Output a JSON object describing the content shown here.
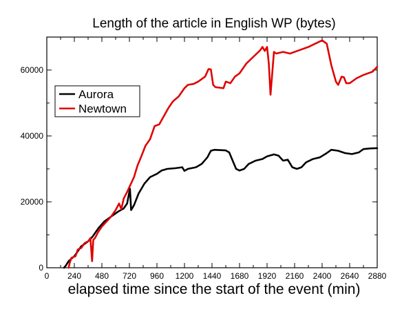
{
  "chart_data": {
    "type": "line",
    "title": "Length of the article in English WP (bytes)",
    "xlabel": "elapsed time since the start of the event (min)",
    "ylabel": "",
    "xlim": [
      0,
      2880
    ],
    "ylim": [
      0,
      70000
    ],
    "x_ticks": [
      0,
      240,
      480,
      720,
      960,
      1200,
      1440,
      1680,
      1920,
      2160,
      2400,
      2640,
      2880
    ],
    "x_tick_labels": [
      "0",
      "240",
      "480",
      "720",
      "960",
      "1200",
      "1440",
      "1680",
      "1920",
      "2160",
      "2400",
      "2640",
      "2880"
    ],
    "y_ticks": [
      0,
      20000,
      40000,
      60000
    ],
    "y_tick_labels": [
      "0",
      "20000",
      "40000",
      "60000"
    ],
    "grid": false,
    "legend_position": "upper-left",
    "series": [
      {
        "name": "Aurora",
        "color": "#000000",
        "points": [
          [
            150,
            0
          ],
          [
            165,
            600
          ],
          [
            190,
            2000
          ],
          [
            240,
            3500
          ],
          [
            300,
            6500
          ],
          [
            360,
            8000
          ],
          [
            400,
            9500
          ],
          [
            450,
            12000
          ],
          [
            500,
            14000
          ],
          [
            560,
            15500
          ],
          [
            620,
            17000
          ],
          [
            670,
            18000
          ],
          [
            700,
            19500
          ],
          [
            725,
            24000
          ],
          [
            735,
            17500
          ],
          [
            760,
            19000
          ],
          [
            800,
            22500
          ],
          [
            850,
            25500
          ],
          [
            900,
            27500
          ],
          [
            960,
            28500
          ],
          [
            1000,
            29500
          ],
          [
            1050,
            30000
          ],
          [
            1120,
            30200
          ],
          [
            1180,
            30500
          ],
          [
            1200,
            29400
          ],
          [
            1230,
            30000
          ],
          [
            1300,
            30500
          ],
          [
            1350,
            31500
          ],
          [
            1400,
            33500
          ],
          [
            1430,
            35500
          ],
          [
            1460,
            35800
          ],
          [
            1560,
            35600
          ],
          [
            1590,
            35000
          ],
          [
            1620,
            32500
          ],
          [
            1650,
            30000
          ],
          [
            1680,
            29500
          ],
          [
            1720,
            30000
          ],
          [
            1760,
            31500
          ],
          [
            1820,
            32500
          ],
          [
            1880,
            33000
          ],
          [
            1920,
            33800
          ],
          [
            1980,
            34400
          ],
          [
            2020,
            34000
          ],
          [
            2060,
            32500
          ],
          [
            2100,
            32800
          ],
          [
            2140,
            30500
          ],
          [
            2180,
            30000
          ],
          [
            2220,
            30500
          ],
          [
            2260,
            32000
          ],
          [
            2320,
            33000
          ],
          [
            2380,
            33500
          ],
          [
            2440,
            34800
          ],
          [
            2480,
            35800
          ],
          [
            2540,
            35500
          ],
          [
            2600,
            34800
          ],
          [
            2660,
            34500
          ],
          [
            2720,
            35000
          ],
          [
            2760,
            36000
          ],
          [
            2820,
            36200
          ],
          [
            2880,
            36300
          ]
        ]
      },
      {
        "name": "Newtown",
        "color": "#e00000",
        "points": [
          [
            190,
            0
          ],
          [
            200,
            1500
          ],
          [
            215,
            3000
          ],
          [
            250,
            3500
          ],
          [
            270,
            5500
          ],
          [
            300,
            6000
          ],
          [
            330,
            7500
          ],
          [
            360,
            8000
          ],
          [
            380,
            9000
          ],
          [
            395,
            2000
          ],
          [
            405,
            8500
          ],
          [
            420,
            9000
          ],
          [
            450,
            11000
          ],
          [
            480,
            12500
          ],
          [
            520,
            14000
          ],
          [
            560,
            15500
          ],
          [
            600,
            17500
          ],
          [
            630,
            19500
          ],
          [
            650,
            17800
          ],
          [
            670,
            21000
          ],
          [
            700,
            23000
          ],
          [
            720,
            24500
          ],
          [
            760,
            27500
          ],
          [
            790,
            31000
          ],
          [
            820,
            33500
          ],
          [
            860,
            37000
          ],
          [
            900,
            39000
          ],
          [
            940,
            43000
          ],
          [
            980,
            43500
          ],
          [
            1020,
            46000
          ],
          [
            1060,
            48500
          ],
          [
            1100,
            50500
          ],
          [
            1150,
            52000
          ],
          [
            1200,
            54500
          ],
          [
            1230,
            55500
          ],
          [
            1280,
            55800
          ],
          [
            1320,
            56500
          ],
          [
            1380,
            58000
          ],
          [
            1410,
            60300
          ],
          [
            1430,
            60200
          ],
          [
            1450,
            55500
          ],
          [
            1470,
            54800
          ],
          [
            1540,
            54500
          ],
          [
            1560,
            56500
          ],
          [
            1600,
            56000
          ],
          [
            1640,
            58000
          ],
          [
            1680,
            59000
          ],
          [
            1740,
            62000
          ],
          [
            1800,
            64000
          ],
          [
            1860,
            66000
          ],
          [
            1880,
            67000
          ],
          [
            1900,
            65800
          ],
          [
            1920,
            67000
          ],
          [
            1935,
            62000
          ],
          [
            1950,
            52500
          ],
          [
            1965,
            59000
          ],
          [
            1980,
            65500
          ],
          [
            2000,
            65000
          ],
          [
            2060,
            65500
          ],
          [
            2120,
            65000
          ],
          [
            2200,
            66000
          ],
          [
            2280,
            67000
          ],
          [
            2340,
            68000
          ],
          [
            2400,
            69000
          ],
          [
            2440,
            68000
          ],
          [
            2480,
            61500
          ],
          [
            2520,
            56500
          ],
          [
            2540,
            55500
          ],
          [
            2570,
            58000
          ],
          [
            2590,
            57800
          ],
          [
            2610,
            56000
          ],
          [
            2640,
            56000
          ],
          [
            2700,
            57500
          ],
          [
            2760,
            58500
          ],
          [
            2840,
            59500
          ],
          [
            2880,
            61000
          ]
        ]
      }
    ]
  }
}
